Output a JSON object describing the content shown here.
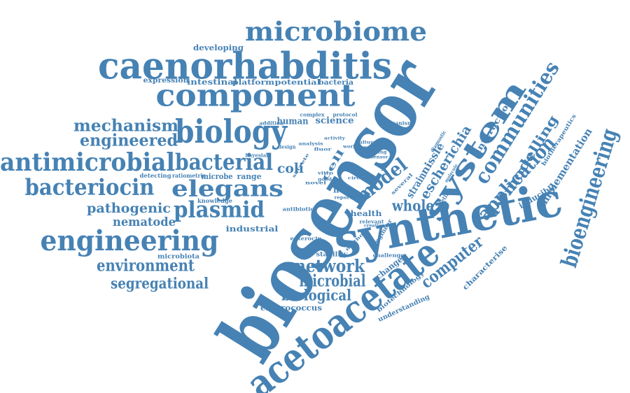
{
  "word_color": "#4682b4",
  "words": [
    "biosensor",
    "synthetic",
    "acetoacetate",
    "caenorhabditis",
    "component",
    "biology",
    "system",
    "microbiome",
    "engineering",
    "antimicrobial",
    "bacteriocin",
    "elegans",
    "bacterial",
    "plasmid",
    "bioengineering",
    "model",
    "communities",
    "application",
    "mechanism",
    "engineered",
    "network",
    "microbial",
    "biological",
    "environment",
    "segregational",
    "pathogenic",
    "nematode",
    "escherichia",
    "computer",
    "modelling",
    "implementation",
    "whole",
    "coli",
    "strain",
    "nissle",
    "host",
    "cell",
    "human",
    "science",
    "developing",
    "expression",
    "intestinal",
    "platform",
    "potential",
    "bacteria",
    "interaction",
    "inducible",
    "biotherapeutics",
    "characterise",
    "biotechnology",
    "understanding",
    "enterococcus",
    "microbiota",
    "industrial",
    "detecting",
    "ratiometric",
    "microbe",
    "range",
    "knowledge",
    "change",
    "challenge",
    "stability",
    "health",
    "engineer",
    "targeting",
    "enterocin",
    "antibiotic",
    "relevant",
    "several",
    "culture",
    "based",
    "organism",
    "complex",
    "protocol",
    "addition",
    "diagnostic",
    "design",
    "analysis",
    "bayesian",
    "killing",
    "molecule",
    "sensor",
    "activity",
    "novel",
    "secrete",
    "vitro",
    "fluor",
    "circuit",
    "report",
    "method",
    "creation",
    "world",
    "good"
  ]
}
